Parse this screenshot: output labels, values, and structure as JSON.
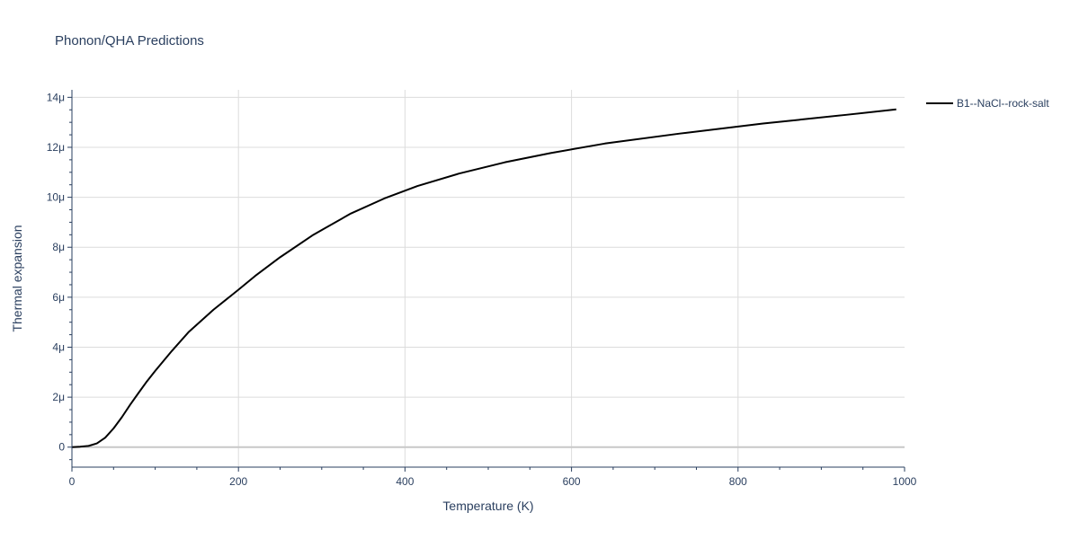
{
  "chart_data": {
    "type": "line",
    "title": "Phonon/QHA Predictions",
    "xlabel": "Temperature (K)",
    "ylabel": "Thermal expansion",
    "xlim": [
      0,
      1000
    ],
    "ylim": [
      -0.8,
      14.3
    ],
    "x_ticks": [
      0,
      200,
      400,
      600,
      800,
      1000
    ],
    "x_tick_labels": [
      "0",
      "200",
      "400",
      "600",
      "800",
      "1000"
    ],
    "y_ticks": [
      0,
      2,
      4,
      6,
      8,
      10,
      12,
      14
    ],
    "y_tick_labels": [
      "0",
      "2μ",
      "4μ",
      "6μ",
      "8μ",
      "10μ",
      "12μ",
      "14μ"
    ],
    "y_scale_note": "values in units of 1e-6",
    "grid": true,
    "legend_position": "top-right",
    "series": [
      {
        "name": "B1--NaCl--rock-salt",
        "color": "#000000",
        "x": [
          0,
          10,
          20,
          30,
          40,
          50,
          60,
          70,
          80,
          90,
          100,
          120,
          140,
          170,
          200,
          220,
          250,
          290,
          335,
          375,
          415,
          465,
          520,
          575,
          640,
          730,
          830,
          930,
          990
        ],
        "y": [
          0,
          0.02,
          0.05,
          0.15,
          0.38,
          0.75,
          1.2,
          1.7,
          2.17,
          2.63,
          3.05,
          3.85,
          4.6,
          5.5,
          6.3,
          6.85,
          7.6,
          8.5,
          9.35,
          9.95,
          10.45,
          10.95,
          11.4,
          11.77,
          12.15,
          12.55,
          12.95,
          13.3,
          13.52
        ]
      }
    ]
  }
}
